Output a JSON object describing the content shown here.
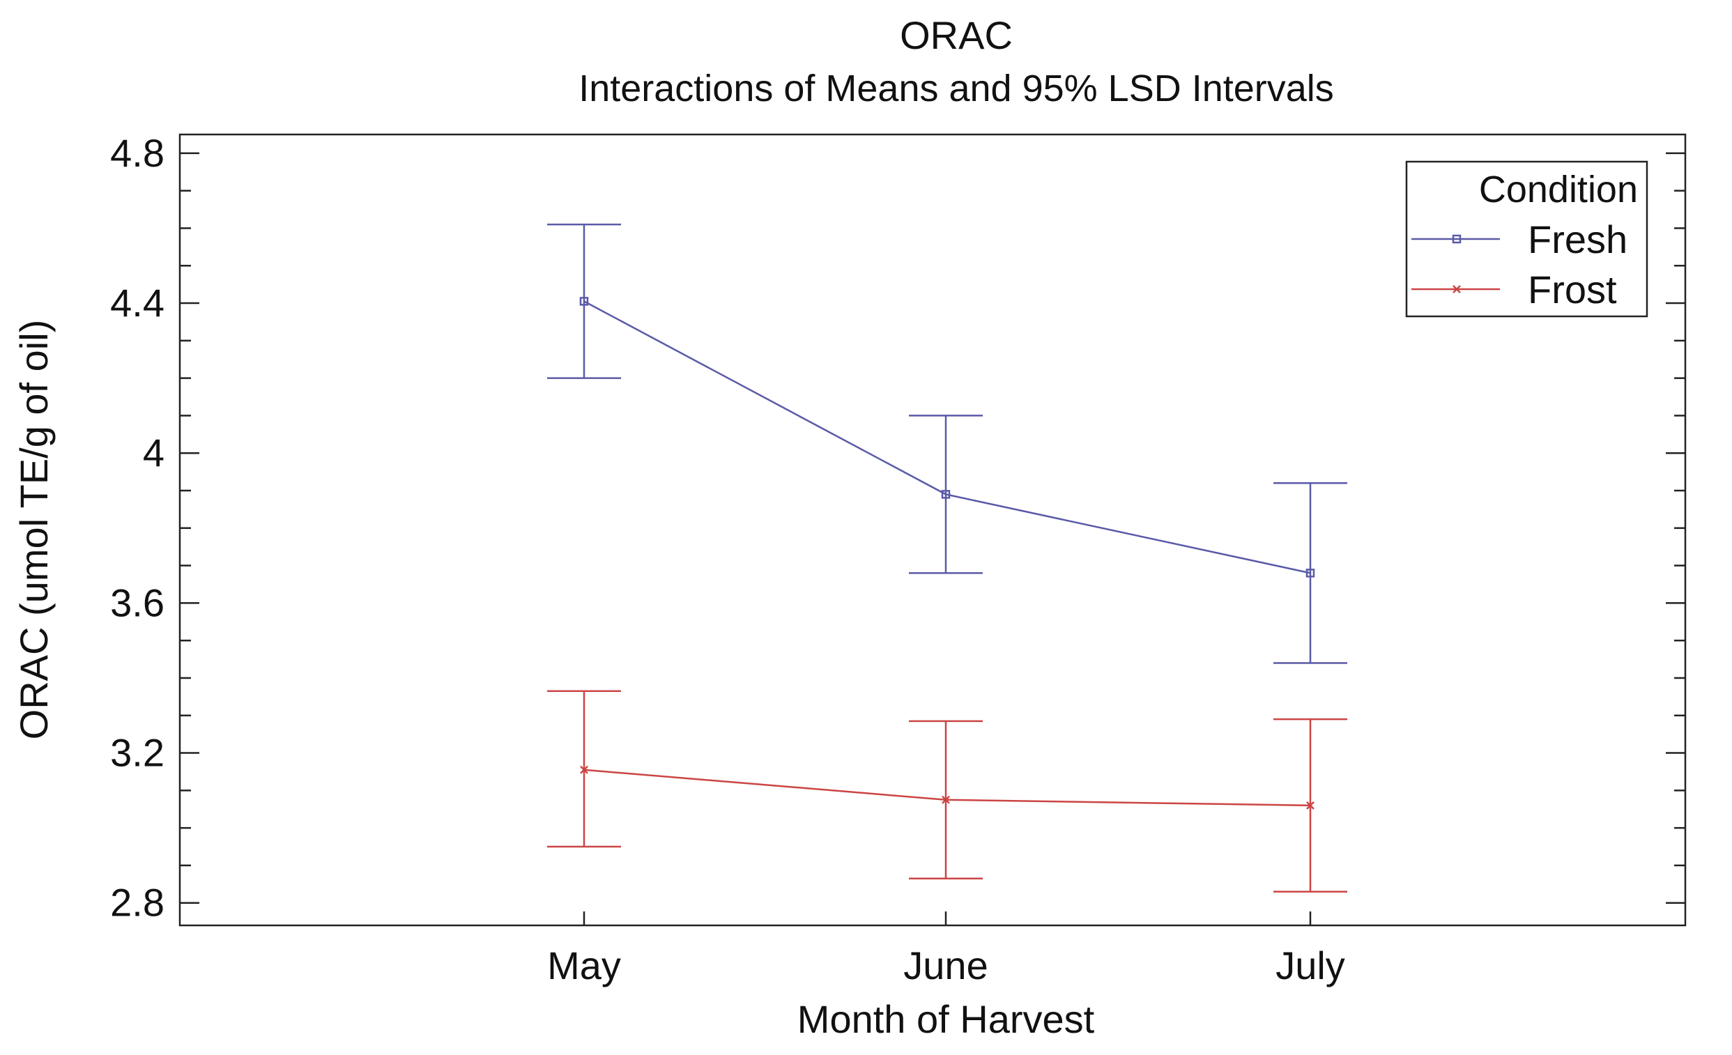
{
  "chart_data": {
    "type": "line",
    "title": "ORAC",
    "subtitle": "Interactions of Means and 95% LSD Intervals",
    "xlabel": "Month of Harvest",
    "ylabel": "ORAC (umol TE/g of oil)",
    "categories": [
      "May",
      "June",
      "July"
    ],
    "ylim": [
      2.74,
      4.85
    ],
    "y_ticks": [
      2.8,
      3.2,
      3.6,
      4.0,
      4.4,
      4.8
    ],
    "y_tick_labels": [
      "2.8",
      "3.2",
      "3.6",
      "4",
      "4.4",
      "4.8"
    ],
    "y_minor_step": 0.1,
    "grid": false,
    "legend": {
      "title": "Condition",
      "placement": "top-right"
    },
    "series": [
      {
        "name": "Fresh",
        "color": "#5a5aa8",
        "marker": "square",
        "values": [
          4.405,
          3.89,
          3.68
        ],
        "lower": [
          4.2,
          3.68,
          3.44
        ],
        "upper": [
          4.61,
          4.1,
          3.92
        ]
      },
      {
        "name": "Frost",
        "color": "#cc4444",
        "marker": "x",
        "values": [
          3.155,
          3.075,
          3.06
        ],
        "lower": [
          2.95,
          2.865,
          2.83
        ],
        "upper": [
          3.365,
          3.285,
          3.29
        ]
      }
    ]
  }
}
